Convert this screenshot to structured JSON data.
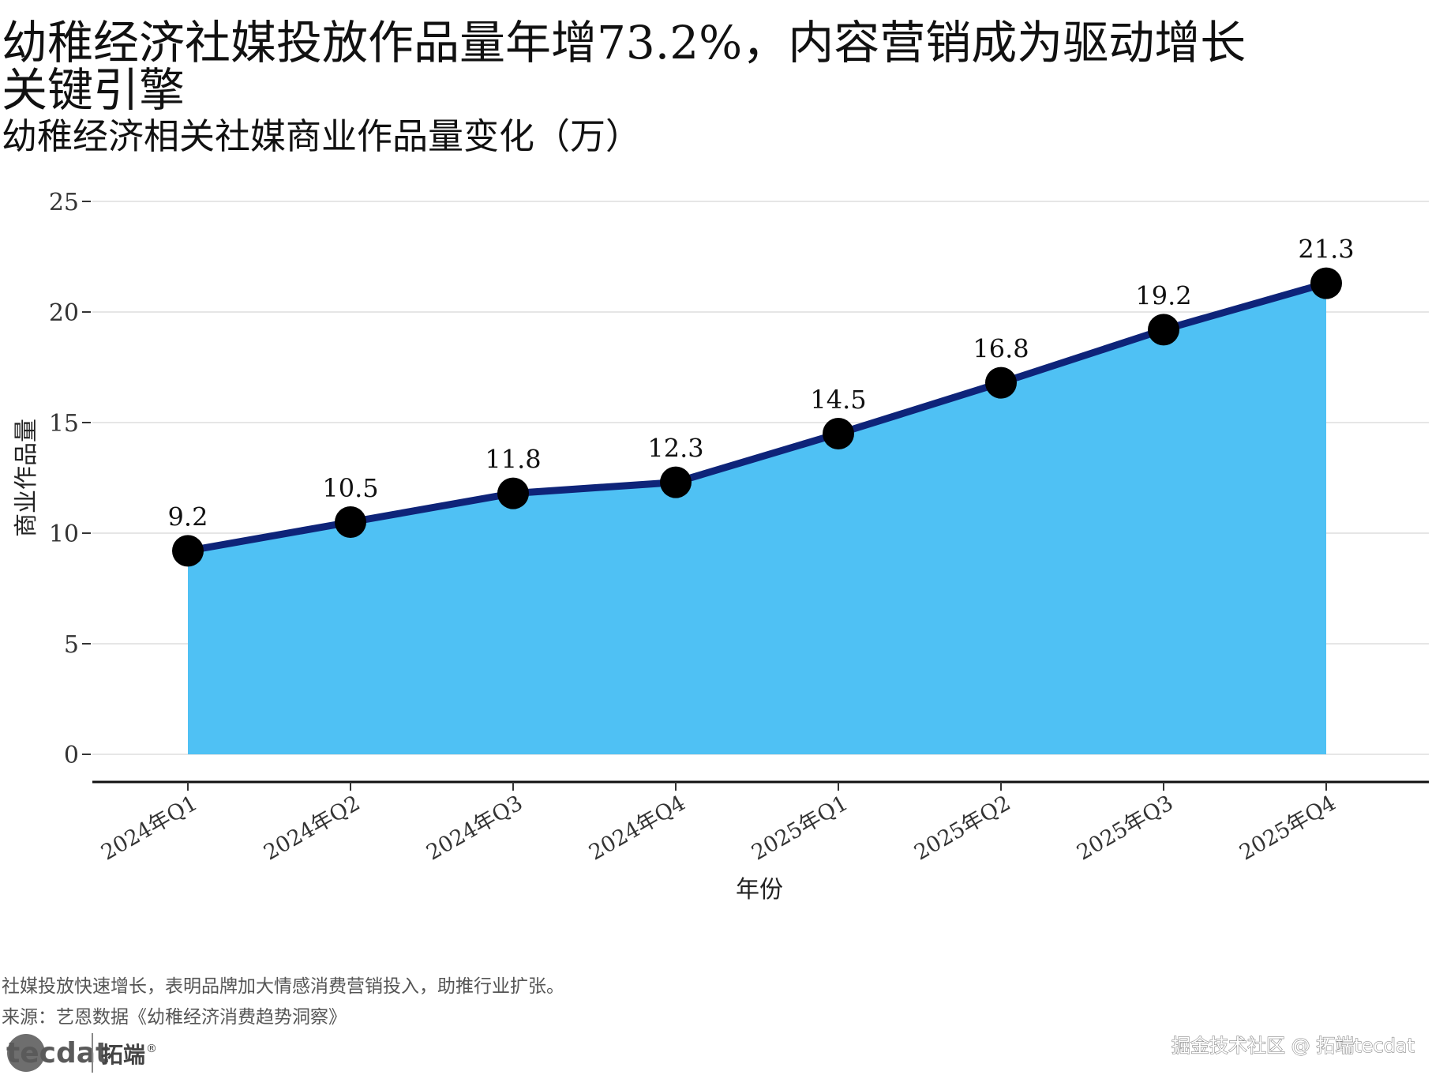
{
  "chart_data": {
    "type": "area",
    "title_line1": "幼稚经济社媒投放作品量年增73.2%，内容营销成为驱动增长",
    "title_line2": "关键引擎",
    "subtitle": "幼稚经济相关社媒商业作品量变化（万）",
    "xlabel": "年份",
    "ylabel": "商业作品量",
    "categories": [
      "2024年Q1",
      "2024年Q2",
      "2024年Q3",
      "2024年Q4",
      "2025年Q1",
      "2025年Q2",
      "2025年Q3",
      "2025年Q4"
    ],
    "values": [
      9.2,
      10.5,
      11.8,
      12.3,
      14.5,
      16.8,
      19.2,
      21.3
    ],
    "data_labels": [
      "9.2",
      "10.5",
      "11.8",
      "12.3",
      "14.5",
      "16.8",
      "19.2",
      "21.3"
    ],
    "ylim": [
      0,
      25
    ],
    "yticks": [
      0,
      5,
      10,
      15,
      20,
      25
    ],
    "grid": true,
    "legend": "none"
  },
  "caption": {
    "note": "社媒投放快速增长，表明品牌加大情感消费营销投入，助推行业扩张。",
    "source": "来源：艺恩数据《幼稚经济消费趋势洞察》"
  },
  "watermark": {
    "logo_text": "tecdat",
    "brand": "拓端",
    "registered": "®",
    "community": "掘金技术社区 @ 拓端tecdat"
  },
  "colors": {
    "area_fill": "#4fc1f4",
    "line": "#0e2479",
    "point": "#000000",
    "grid": "#e6e6e6"
  }
}
